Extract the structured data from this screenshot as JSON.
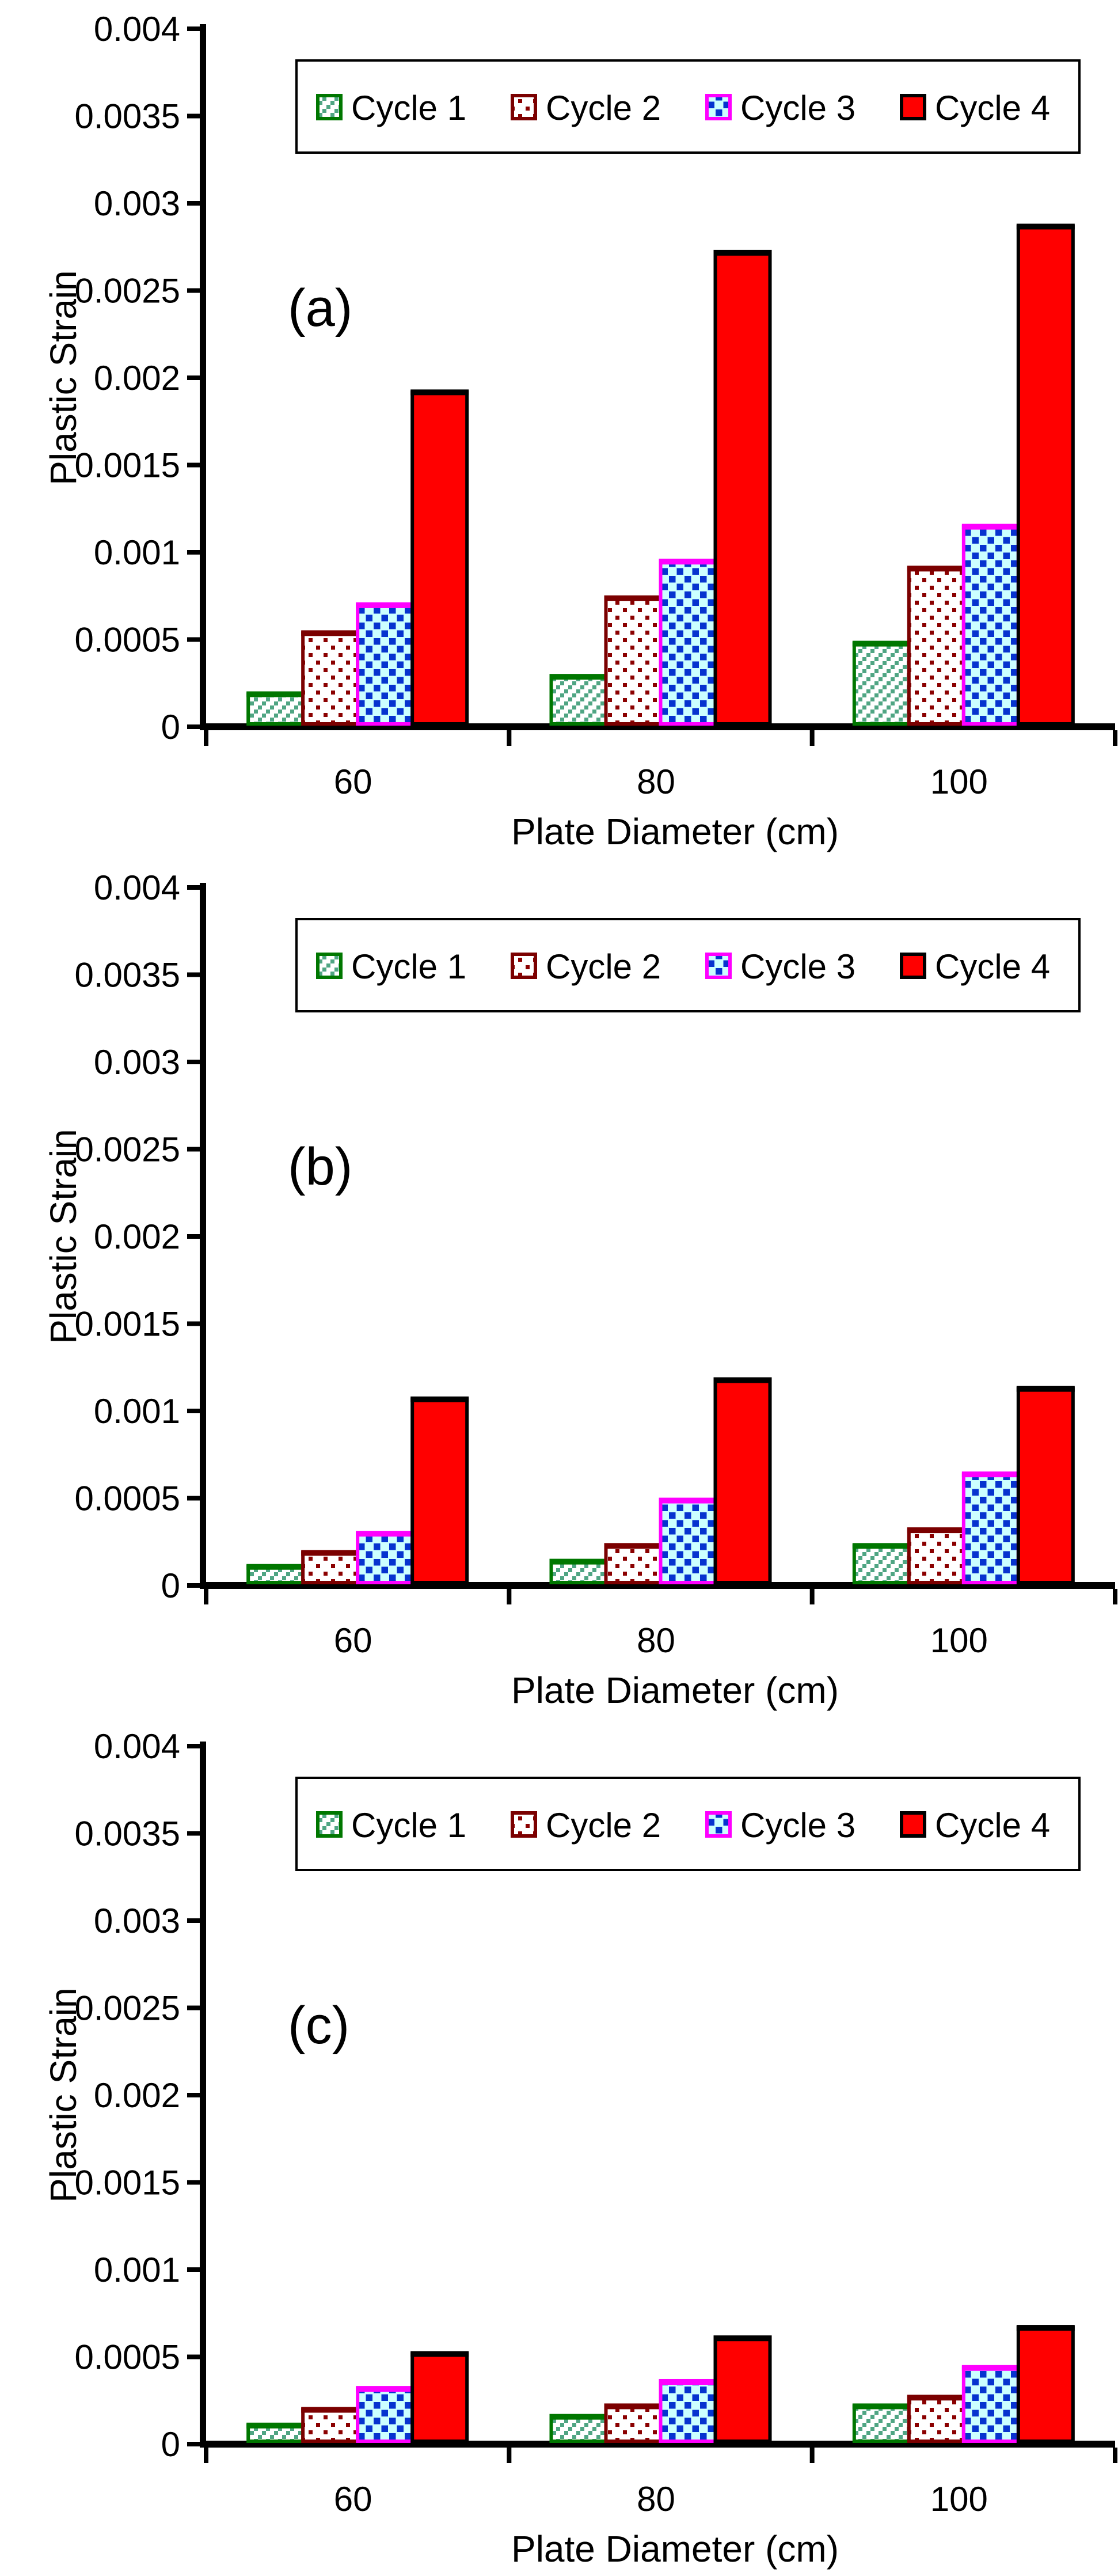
{
  "figure": {
    "y_axis_label": "Plastic Strain",
    "x_axis_label": "Plate Diameter (cm)",
    "y_ticks": [
      "0",
      "0.0005",
      "0.001",
      "0.0015",
      "0.002",
      "0.0025",
      "0.003",
      "0.0035",
      "0.004"
    ],
    "categories": [
      "60",
      "80",
      "100"
    ],
    "legend_labels": [
      "Cycle 1",
      "Cycle 2",
      "Cycle 3",
      "Cycle 4"
    ],
    "panel_labels": [
      "(a)",
      "(b)",
      "(c)"
    ]
  },
  "colors": {
    "cycle1_edge": "#007700",
    "cycle1_dot": "#4FA583",
    "cycle1_bg": "#FFFFFF",
    "cycle2_edge": "#7B0000",
    "cycle2_dot": "#8B0000",
    "cycle2_bg": "#FFFFFF",
    "cycle3_edge": "#FF00FF",
    "cycle3_dot": "#0633CF",
    "cycle3_bg": "#CCFFFF",
    "cycle4_edge": "#000000",
    "cycle4_fill": "#FF0000",
    "axis": "#000000",
    "text": "#000000",
    "background": "#FFFFFF"
  },
  "chart_data": [
    {
      "type": "bar",
      "panel_label": "(a)",
      "xlabel": "Plate Diameter (cm)",
      "ylabel": "Plastic Strain",
      "categories": [
        "60",
        "80",
        "100"
      ],
      "ylim": [
        0,
        0.004
      ],
      "y_tick_step": 0.0005,
      "grid": false,
      "legend_position": "top-center-inside",
      "series": [
        {
          "name": "Cycle 1",
          "values": [
            0.00017,
            0.00027,
            0.00046
          ]
        },
        {
          "name": "Cycle 2",
          "values": [
            0.00052,
            0.00072,
            0.00089
          ]
        },
        {
          "name": "Cycle 3",
          "values": [
            0.00068,
            0.00093,
            0.00113
          ]
        },
        {
          "name": "Cycle 4",
          "values": [
            0.0019,
            0.0027,
            0.00285
          ]
        }
      ]
    },
    {
      "type": "bar",
      "panel_label": "(b)",
      "xlabel": "Plate Diameter (cm)",
      "ylabel": "Plastic Strain",
      "categories": [
        "60",
        "80",
        "100"
      ],
      "ylim": [
        0,
        0.004
      ],
      "y_tick_step": 0.0005,
      "grid": false,
      "legend_position": "top-center-inside",
      "series": [
        {
          "name": "Cycle 1",
          "values": [
            9e-05,
            0.00012,
            0.00021
          ]
        },
        {
          "name": "Cycle 2",
          "values": [
            0.00017,
            0.00021,
            0.0003
          ]
        },
        {
          "name": "Cycle 3",
          "values": [
            0.00028,
            0.00047,
            0.00062
          ]
        },
        {
          "name": "Cycle 4",
          "values": [
            0.00105,
            0.00116,
            0.00111
          ]
        }
      ]
    },
    {
      "type": "bar",
      "panel_label": "(c)",
      "xlabel": "Plate Diameter (cm)",
      "ylabel": "Plastic Strain",
      "categories": [
        "60",
        "80",
        "100"
      ],
      "ylim": [
        0,
        0.004
      ],
      "y_tick_step": 0.0005,
      "grid": false,
      "legend_position": "top-center-inside",
      "series": [
        {
          "name": "Cycle 1",
          "values": [
            9e-05,
            0.00014,
            0.0002
          ]
        },
        {
          "name": "Cycle 2",
          "values": [
            0.00018,
            0.0002,
            0.00025
          ]
        },
        {
          "name": "Cycle 3",
          "values": [
            0.0003,
            0.00034,
            0.00042
          ]
        },
        {
          "name": "Cycle 4",
          "values": [
            0.0005,
            0.00059,
            0.00065
          ]
        }
      ]
    }
  ]
}
